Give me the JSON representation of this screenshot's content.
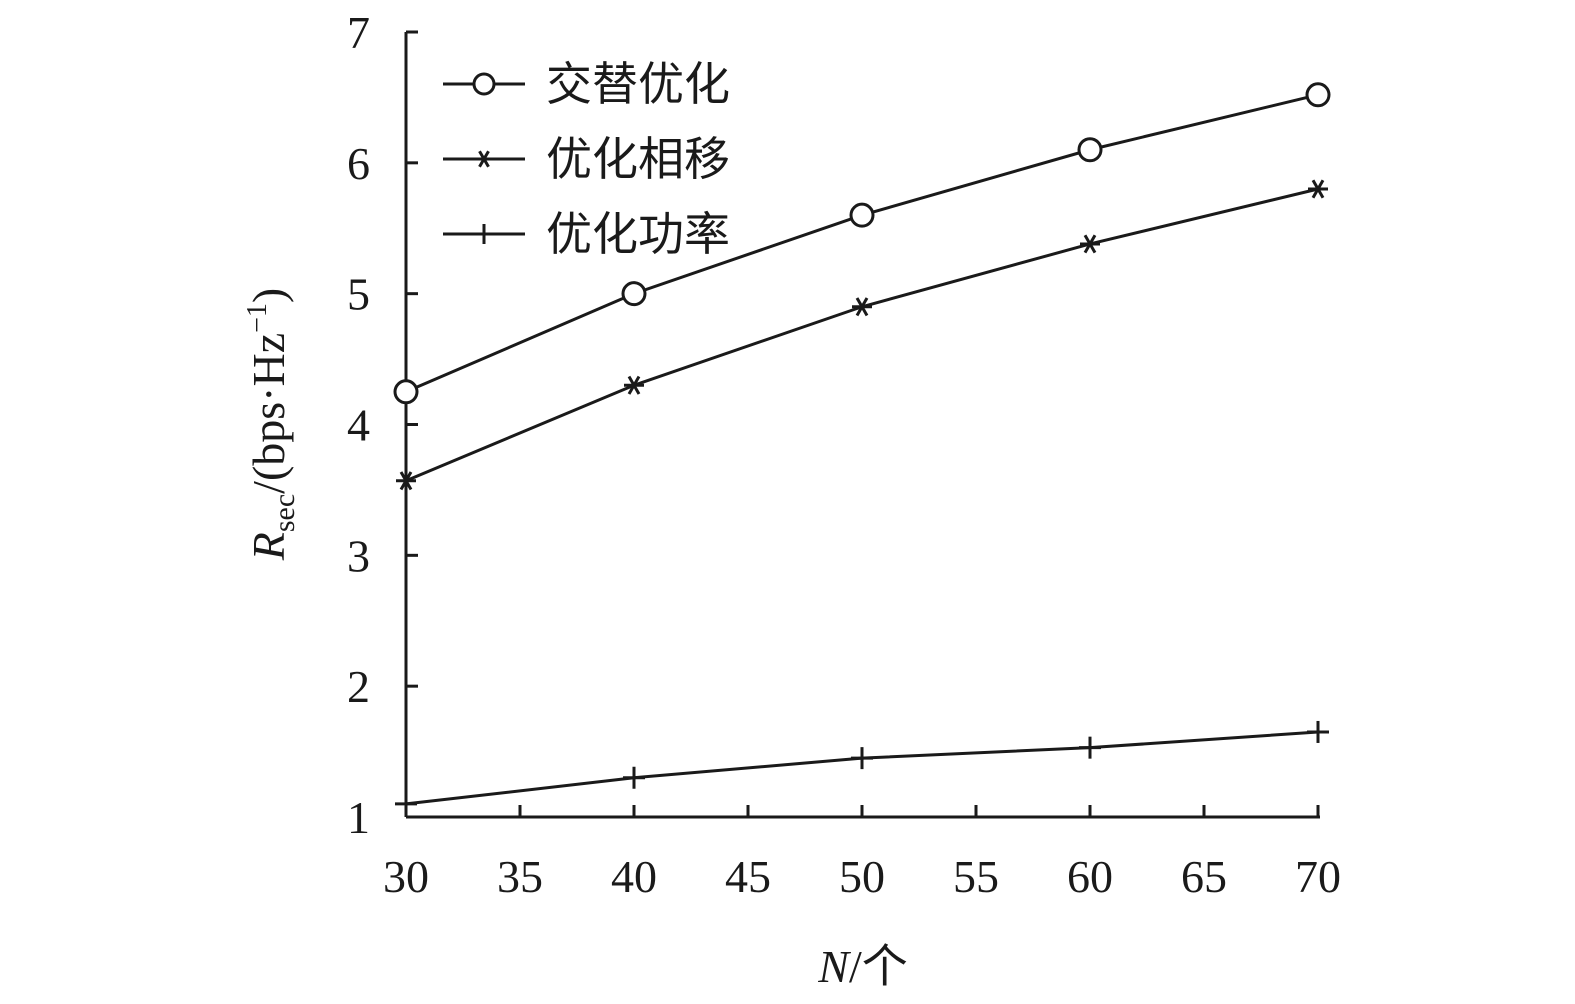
{
  "chart_data": {
    "type": "line",
    "x": [
      30,
      40,
      50,
      60,
      70
    ],
    "x_ticks": [
      30,
      35,
      40,
      45,
      50,
      55,
      60,
      65,
      70
    ],
    "y_ticks": [
      1,
      2,
      3,
      4,
      5,
      6,
      7
    ],
    "xlim": [
      30,
      70
    ],
    "ylim": [
      1,
      7
    ],
    "xlabel": {
      "var": "N",
      "unit": "/个"
    },
    "ylabel": {
      "var": "R",
      "sub": "sec",
      "unit_prefix": "/(bps·Hz",
      "sup": "−1",
      "unit_suffix": ")"
    },
    "grid": false,
    "legend_position": "top-left",
    "series": [
      {
        "name": "交替优化",
        "marker": "circle",
        "values": [
          4.25,
          5.0,
          5.6,
          6.1,
          6.52
        ]
      },
      {
        "name": "优化相移",
        "marker": "asterisk",
        "values": [
          3.57,
          4.3,
          4.9,
          5.38,
          5.8
        ]
      },
      {
        "name": "优化功率",
        "marker": "plus",
        "values": [
          1.1,
          1.3,
          1.45,
          1.53,
          1.65
        ]
      }
    ],
    "colors": {
      "ink": "#1a1a1a",
      "background": "#ffffff"
    }
  }
}
